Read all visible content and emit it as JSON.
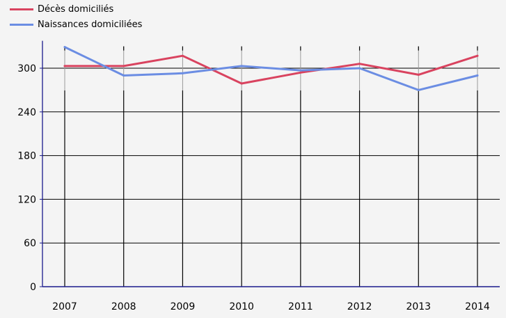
{
  "chart_data": {
    "type": "line",
    "categories": [
      "2007",
      "2008",
      "2009",
      "2010",
      "2011",
      "2012",
      "2013",
      "2014"
    ],
    "series": [
      {
        "name": "Décès domiciliés",
        "color": "#d9435f",
        "values": [
          303,
          303,
          317,
          279,
          294,
          306,
          291,
          317
        ]
      },
      {
        "name": "Naissances domiciliées",
        "color": "#6b8de3",
        "values": [
          329,
          290,
          293,
          303,
          297,
          300,
          270,
          290
        ]
      }
    ],
    "yticks": [
      "0",
      "60",
      "120",
      "180",
      "240",
      "300"
    ],
    "ylim": [
      0,
      330
    ],
    "grid": true,
    "legend": "top-left",
    "colors": {
      "background": "#f4f4f4",
      "axis": "#1a1a8c",
      "grid": "#000000"
    }
  }
}
